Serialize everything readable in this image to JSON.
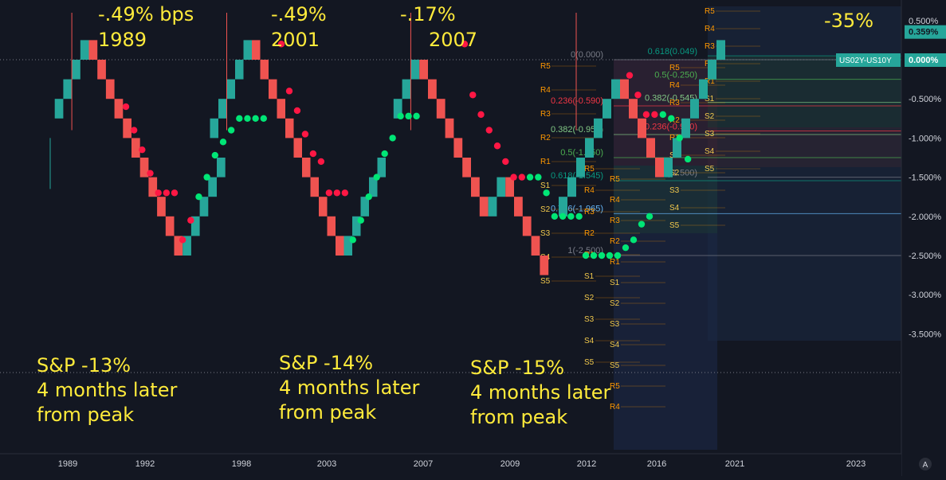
{
  "chart_data": {
    "type": "renko_line",
    "y_axis": {
      "ticks": [
        "0.500%",
        "-0.500%",
        "-1.000%",
        "-1.500%",
        "-2.000%",
        "-2.500%",
        "-3.000%",
        "-3.500%"
      ],
      "tick_values": [
        0.5,
        -0.5,
        -1.0,
        -1.5,
        -2.0,
        -2.5,
        -3.0,
        -3.5
      ],
      "range": [
        -3.5,
        0.5
      ]
    },
    "x_axis": {
      "ticks": [
        "1989",
        "1992",
        "1998",
        "2003",
        "2007",
        "2009",
        "2012",
        "2016",
        "2021",
        "2023"
      ]
    },
    "price_labels": [
      {
        "text": "0.359%",
        "value": 0.359,
        "color": "#26a69a"
      },
      {
        "text": "US02Y-US10Y",
        "value": 0.0,
        "color": "#26a69a"
      },
      {
        "text": "0.000%",
        "value": 0.0,
        "color": "#26a69a"
      }
    ],
    "annotations": [
      {
        "id": "c1-title",
        "lines": [
          "-.49% bps",
          "1989"
        ]
      },
      {
        "id": "c2-title",
        "lines": [
          "-.49%",
          "2001"
        ]
      },
      {
        "id": "c3-title",
        "lines": [
          "-.17%",
          "2007"
        ]
      },
      {
        "id": "c4-title",
        "lines": [
          "-35%"
        ]
      },
      {
        "id": "c1-sp",
        "lines": [
          "S&P -13%",
          "4 months later",
          "from peak"
        ]
      },
      {
        "id": "c2-sp",
        "lines": [
          "S&P -14%",
          "4 months later",
          "from peak"
        ]
      },
      {
        "id": "c3-sp",
        "lines": [
          "S&P -15%",
          "4 months later",
          "from peak"
        ]
      }
    ],
    "fib_levels": [
      {
        "label": "0(0.000)",
        "value": 0.0,
        "color": "#787b86"
      },
      {
        "label": "0.236(-0.590)",
        "value": -0.59,
        "color": "#f23645"
      },
      {
        "label": "0.382(-0.955)",
        "value": -0.955,
        "color": "#81c784"
      },
      {
        "label": "0.5(-1.250)",
        "value": -1.25,
        "color": "#4caf50"
      },
      {
        "label": "0.618(-1.545)",
        "value": -1.545,
        "color": "#089981"
      },
      {
        "label": "0.786(-1.965)",
        "value": -1.965,
        "color": "#64b5f6"
      },
      {
        "label": "1(-2.500)",
        "value": -2.5,
        "color": "#787b86"
      }
    ],
    "fib_levels_right": [
      {
        "label": "0.618(0.049)",
        "value": 0.049,
        "color": "#089981"
      },
      {
        "label": "0.5(-0.250)",
        "value": -0.25,
        "color": "#4caf50"
      },
      {
        "label": "0.382(-0.545)",
        "value": -0.545,
        "color": "#81c784"
      },
      {
        "label": "0.236(-0.910)",
        "value": -0.91,
        "color": "#f23645"
      },
      {
        "label": "0(-1.500)",
        "value": -1.5,
        "color": "#787b86"
      }
    ],
    "pivot_labels": [
      "R5",
      "R4",
      "R3",
      "R2",
      "R1",
      "S1",
      "S2",
      "S3",
      "S4",
      "S5"
    ],
    "colors": {
      "up": "#26a69a",
      "down": "#ef5350",
      "sar_up": "#00e676",
      "sar_down": "#ff1744",
      "annotation": "#ffeb3b",
      "background": "#131722"
    },
    "series": [
      {
        "name": "cycle-1",
        "renko_values": [
          -0.75,
          -0.5,
          -0.25,
          0.0,
          0.25,
          0.0,
          -0.25,
          -0.5,
          -0.75,
          -1.0,
          -1.25,
          -1.5,
          -1.75,
          -2.0,
          -2.25,
          -2.5,
          -2.25,
          -2.0,
          -1.75,
          -1.5,
          -1.25
        ],
        "sar_values": [
          -0.6,
          -0.9,
          -1.15,
          -1.45,
          -1.7,
          -1.7,
          -1.7,
          -2.3,
          -2.05,
          -1.75,
          -1.5,
          -1.22,
          -1.05,
          -0.9,
          -0.75,
          -0.75,
          -0.75,
          -0.75
        ]
      },
      {
        "name": "cycle-2",
        "renko_values": [
          -1.0,
          -0.75,
          -0.5,
          -0.25,
          0.0,
          0.25,
          0.0,
          -0.25,
          -0.5,
          -0.75,
          -1.0,
          -1.25,
          -1.5,
          -1.75,
          -2.0,
          -2.25,
          -2.5,
          -2.25,
          -2.0,
          -1.75,
          -1.5,
          -1.25
        ],
        "sar_values": [
          0.2,
          -0.4,
          -0.65,
          -0.95,
          -1.2,
          -1.3,
          -1.7,
          -1.7,
          -1.7,
          -2.3,
          -2.05,
          -1.75,
          -1.5,
          -1.2,
          -1.0,
          -0.72,
          -0.72,
          -0.72
        ]
      },
      {
        "name": "cycle-3",
        "renko_values": [
          -0.75,
          -0.5,
          -0.25,
          0.0,
          -0.25,
          -0.5,
          -0.75,
          -1.0,
          -1.25,
          -1.5,
          -1.75,
          -2.0,
          -1.75,
          -1.5,
          -1.75,
          -2.0,
          -2.25,
          -2.5,
          -2.75
        ],
        "sar_values": [
          0.2,
          -0.45,
          -0.7,
          -0.9,
          -1.1,
          -1.3,
          -1.5,
          -1.5,
          -1.5,
          -1.5,
          -1.7,
          -2.0,
          -2.0,
          -2.0,
          -2.0
        ],
        "sar_values_low": [
          -2.5,
          -2.5,
          -2.5,
          -2.5,
          -2.5,
          -2.4,
          -2.3,
          -2.1,
          -2.0
        ]
      },
      {
        "name": "cycle-4",
        "renko_values": [
          -2.0,
          -1.75,
          -1.5,
          -1.25,
          -1.0,
          -0.75,
          -0.5,
          -0.25,
          -0.5,
          -0.75,
          -1.0,
          -1.25,
          -1.5,
          -1.25,
          -1.0,
          -0.75,
          -0.5,
          -0.25,
          0.0,
          0.25
        ],
        "sar_values": [
          -0.2,
          -0.45,
          -0.7,
          -0.7,
          -0.7,
          -0.75,
          -1.0,
          -1.27
        ]
      }
    ]
  }
}
